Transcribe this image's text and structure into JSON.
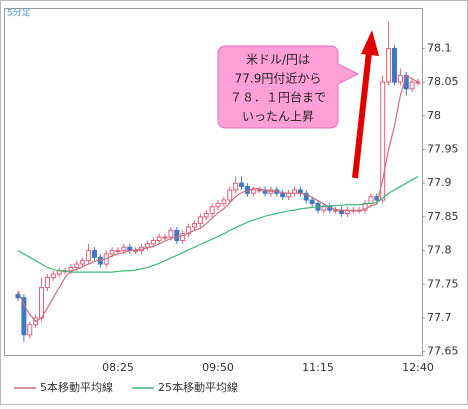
{
  "chart_data": {
    "type": "candlestick",
    "title": "5分足",
    "categories": [
      null,
      null,
      null,
      null,
      null,
      null,
      null,
      null,
      null,
      null,
      null,
      null,
      null,
      null,
      null,
      null,
      null,
      "08:25",
      null,
      null,
      null,
      null,
      null,
      null,
      null,
      null,
      null,
      null,
      null,
      null,
      null,
      null,
      null,
      null,
      "09:50",
      null,
      null,
      null,
      null,
      null,
      null,
      null,
      null,
      null,
      null,
      null,
      null,
      null,
      null,
      null,
      null,
      "11:15",
      null,
      null,
      null,
      null,
      null,
      null,
      null,
      null,
      null,
      null,
      null,
      null,
      null,
      null,
      null,
      null,
      "12:40"
    ],
    "open": [
      77.735,
      77.73,
      77.675,
      77.69,
      77.7,
      77.745,
      77.76,
      77.765,
      77.77,
      77.77,
      77.775,
      77.78,
      77.785,
      77.8,
      77.79,
      77.78,
      77.795,
      77.8,
      77.8,
      77.805,
      77.8,
      77.8,
      77.805,
      77.81,
      77.815,
      77.82,
      77.82,
      77.83,
      77.815,
      77.825,
      77.835,
      77.84,
      77.85,
      77.855,
      77.865,
      77.87,
      77.875,
      77.89,
      77.9,
      77.895,
      77.885,
      77.89,
      77.89,
      77.885,
      77.89,
      77.885,
      77.88,
      77.885,
      77.89,
      77.885,
      77.875,
      77.87,
      77.86,
      77.865,
      77.86,
      77.86,
      77.855,
      77.86,
      77.86,
      77.86,
      77.87,
      77.88,
      77.875,
      78.05,
      78.1,
      78.05,
      78.06,
      78.04,
      78.05
    ],
    "high": [
      77.74,
      77.735,
      77.695,
      77.705,
      77.76,
      77.765,
      77.77,
      77.775,
      77.775,
      77.78,
      77.785,
      77.79,
      77.81,
      77.805,
      77.795,
      77.8,
      77.805,
      77.805,
      77.81,
      77.81,
      77.805,
      77.81,
      77.815,
      77.82,
      77.825,
      77.825,
      77.835,
      77.835,
      77.83,
      77.84,
      77.845,
      77.855,
      77.86,
      77.87,
      77.875,
      77.88,
      77.895,
      77.91,
      77.91,
      77.9,
      77.895,
      77.895,
      77.895,
      77.895,
      77.895,
      77.89,
      77.89,
      77.895,
      77.895,
      77.89,
      77.88,
      77.875,
      77.87,
      77.87,
      77.865,
      77.865,
      77.865,
      77.865,
      77.865,
      77.875,
      77.885,
      77.885,
      78.06,
      78.14,
      78.105,
      78.07,
      78.065,
      78.055,
      78.055
    ],
    "low": [
      77.725,
      77.665,
      77.67,
      77.685,
      77.695,
      77.74,
      77.755,
      77.76,
      77.765,
      77.765,
      77.77,
      77.775,
      77.78,
      77.785,
      77.775,
      77.775,
      77.79,
      77.795,
      77.795,
      77.795,
      77.795,
      77.795,
      77.8,
      77.805,
      77.81,
      77.815,
      77.815,
      77.81,
      77.81,
      77.82,
      77.83,
      77.835,
      77.845,
      77.85,
      77.86,
      77.865,
      77.87,
      77.885,
      77.89,
      77.88,
      77.88,
      77.885,
      77.88,
      77.88,
      77.88,
      77.875,
      77.875,
      77.88,
      77.88,
      77.87,
      77.865,
      77.855,
      77.855,
      77.855,
      77.855,
      77.85,
      77.85,
      77.855,
      77.855,
      77.855,
      77.865,
      77.87,
      77.87,
      78.045,
      78.045,
      78.045,
      78.03,
      78.035,
      78.045
    ],
    "close": [
      77.73,
      77.675,
      77.69,
      77.7,
      77.745,
      77.76,
      77.765,
      77.77,
      77.77,
      77.775,
      77.78,
      77.785,
      77.8,
      77.79,
      77.78,
      77.795,
      77.8,
      77.8,
      77.805,
      77.8,
      77.8,
      77.805,
      77.81,
      77.815,
      77.82,
      77.82,
      77.83,
      77.815,
      77.825,
      77.835,
      77.84,
      77.85,
      77.855,
      77.865,
      77.87,
      77.875,
      77.89,
      77.9,
      77.895,
      77.885,
      77.89,
      77.89,
      77.885,
      77.89,
      77.885,
      77.88,
      77.885,
      77.89,
      77.885,
      77.875,
      77.87,
      77.86,
      77.865,
      77.86,
      77.86,
      77.855,
      77.86,
      77.86,
      77.86,
      77.87,
      77.88,
      77.875,
      78.05,
      78.1,
      78.05,
      78.06,
      78.04,
      78.05,
      78.05
    ],
    "up_color": "#d9607a",
    "down_color": "#3f78c0",
    "series": [
      {
        "name": "5本移動平均線",
        "color": "#c8707e",
        "values": [
          77.74,
          77.72,
          77.705,
          77.695,
          77.7,
          77.715,
          77.73,
          77.745,
          77.76,
          77.77,
          77.772,
          77.776,
          77.78,
          77.784,
          77.786,
          77.788,
          77.792,
          77.795,
          77.797,
          77.8,
          77.801,
          77.802,
          77.804,
          77.806,
          77.81,
          77.814,
          77.818,
          77.82,
          77.822,
          77.826,
          77.83,
          77.833,
          77.84,
          77.848,
          77.856,
          77.862,
          77.871,
          77.88,
          77.886,
          77.889,
          77.892,
          77.892,
          77.889,
          77.888,
          77.888,
          77.886,
          77.885,
          77.885,
          77.885,
          77.883,
          77.879,
          77.874,
          77.869,
          77.864,
          77.861,
          77.86,
          77.859,
          77.859,
          77.859,
          77.862,
          77.866,
          77.869,
          77.905,
          77.95,
          77.985,
          78.03,
          78.06,
          78.055,
          78.05
        ]
      },
      {
        "name": "25本移動平均線",
        "color": "#3cb878",
        "values": [
          77.8,
          77.795,
          77.79,
          77.785,
          77.78,
          77.775,
          77.772,
          77.77,
          77.77,
          77.768,
          77.768,
          77.768,
          77.768,
          77.768,
          77.768,
          77.768,
          77.768,
          77.769,
          77.77,
          77.77,
          77.771,
          77.773,
          77.775,
          77.778,
          77.781,
          77.785,
          77.789,
          77.793,
          77.797,
          77.801,
          77.805,
          77.809,
          77.813,
          77.817,
          77.821,
          77.825,
          77.83,
          77.834,
          77.838,
          77.842,
          77.845,
          77.848,
          77.851,
          77.853,
          77.855,
          77.857,
          77.859,
          77.86,
          77.862,
          77.863,
          77.864,
          77.865,
          77.866,
          77.866,
          77.867,
          77.867,
          77.868,
          77.868,
          77.868,
          77.869,
          77.87,
          77.871,
          77.878,
          77.885,
          77.89,
          77.895,
          77.9,
          77.905,
          77.91
        ]
      }
    ],
    "ylim": [
      77.645,
      78.16
    ],
    "yticks": [
      77.65,
      77.7,
      77.75,
      77.8,
      77.85,
      77.9,
      77.95,
      78,
      78.05,
      78.1
    ],
    "annotation": [
      "米ドル/円は",
      "77.9円付近から",
      "７８．１円台まで",
      "いったん上昇"
    ],
    "arrow_color": "#e00000",
    "callout_color": "#ff9fd8"
  }
}
